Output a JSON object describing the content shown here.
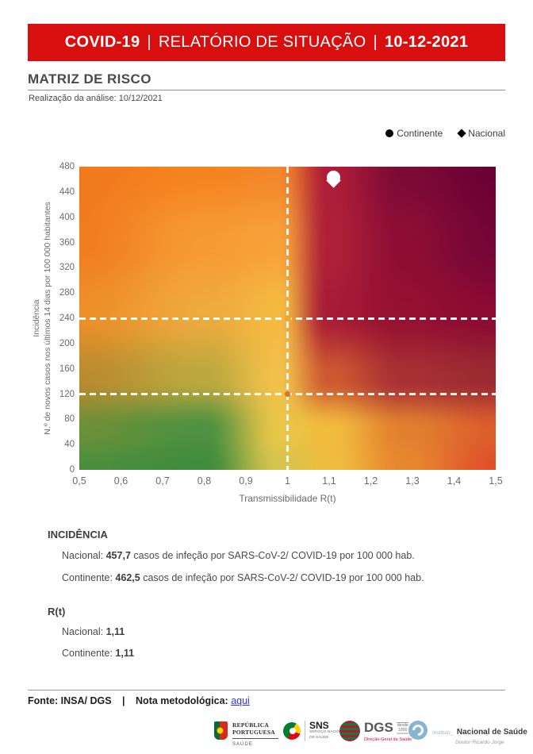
{
  "header": {
    "bg_color": "#D80F0E",
    "part1": "COVID-19",
    "sep1": "|",
    "part2": "RELATÓRIO DE SITUAÇÃO",
    "sep2": "|",
    "date": "10-12-2021"
  },
  "section": {
    "title": "MATRIZ DE RISCO",
    "subtitle": "Realização da análise: 10/12/2021"
  },
  "legend": {
    "items": [
      {
        "marker": "circle",
        "label": "Continente"
      },
      {
        "marker": "diamond",
        "label": "Nacional"
      }
    ]
  },
  "chart_data": {
    "type": "heatmap",
    "title": "Matriz de risco",
    "xlabel": "Transmissibilidade R(t)",
    "ylabel_line1": "Incidência",
    "ylabel_line2": "N.º de novos casos nos últimos 14 dias por 100 000 habitantes",
    "xlim": [
      0.5,
      1.5
    ],
    "ylim": [
      0,
      480
    ],
    "x_tick_values": [
      0.5,
      0.6,
      0.7,
      0.8,
      0.9,
      1,
      1.1,
      1.2,
      1.3,
      1.4,
      1.5
    ],
    "x_tick_labels": [
      "0,5",
      "0,6",
      "0,7",
      "0,8",
      "0,9",
      "1",
      "1,1",
      "1,2",
      "1,3",
      "1,4",
      "1,5"
    ],
    "y_ticks": [
      0,
      40,
      80,
      120,
      160,
      200,
      240,
      280,
      320,
      360,
      400,
      440,
      480
    ],
    "threshold_x": 1,
    "threshold_y": [
      120,
      240
    ],
    "line_color": "#FFFFFF",
    "points": [
      {
        "name": "Continente",
        "marker": "circle",
        "x": 1.11,
        "y": 462.5,
        "color": "#FFFFFF",
        "size": 17
      },
      {
        "name": "Nacional",
        "marker": "diamond",
        "x": 1.11,
        "y": 457.7,
        "color": "#FFFFFF",
        "size": 13
      }
    ],
    "intersection_dots": [
      {
        "x": 1,
        "y": 240,
        "color": "#F2A62A",
        "size": 8
      },
      {
        "x": 1,
        "y": 120,
        "color": "#E4711F",
        "size": 7
      }
    ],
    "heatmap_grid": {
      "u_stops": [
        0,
        0.3,
        0.48,
        0.6,
        0.78,
        1
      ],
      "v_stops": [
        0,
        0.13,
        0.3,
        0.52,
        0.75,
        1
      ],
      "colors": [
        [
          "#4A8F3E",
          "#3E8C3C",
          "#D5C44E",
          "#F0BE3E",
          "#E8872E",
          "#E1512A"
        ],
        [
          "#6B9038",
          "#4E9141",
          "#E8C647",
          "#F2BC3D",
          "#E2802F",
          "#DC5F2D"
        ],
        [
          "#B98B2F",
          "#BCA83E",
          "#F2C04A",
          "#CE5A31",
          "#A93134",
          "#9C2A32"
        ],
        [
          "#EE8F28",
          "#EFA93E",
          "#F5B93F",
          "#A81B36",
          "#951032",
          "#8C0A33"
        ],
        [
          "#F07D20",
          "#F79A33",
          "#F7A139",
          "#B02038",
          "#8E0D35",
          "#740635"
        ],
        [
          "#F07A1E",
          "#F5831D",
          "#F2862C",
          "#AE1C38",
          "#7D0A36",
          "#6A0133"
        ]
      ]
    }
  },
  "incidencia": {
    "heading": "INCIDÊNCIA",
    "rows": [
      {
        "label": "Nacional:",
        "value": "457,7",
        "suffix": "casos de infeção por SARS-CoV-2/ COVID-19 por 100 000 hab."
      },
      {
        "label": "Continente:",
        "value": "462,5",
        "suffix": "casos de infeção por SARS-CoV-2/ COVID-19 por 100 000 hab."
      }
    ]
  },
  "rt": {
    "heading": "R(t)",
    "rows": [
      {
        "label": "Nacional:",
        "value": "1,11"
      },
      {
        "label": "Continente:",
        "value": "1,11"
      }
    ]
  },
  "footer": {
    "fonte": "Fonte: INSA/ DGS",
    "sep": "|",
    "nota": "Nota metodológica:",
    "link": "aqui"
  },
  "logos": {
    "republica": {
      "line1": "REPÚBLICA",
      "line2": "PORTUGUESA",
      "sub": "SAÚDE"
    },
    "sns": {
      "abbr": "SNS",
      "sub1": "SERVIÇO NACIONAL",
      "sub2": "DE SAÚDE"
    },
    "dgs": {
      "abbr": "DGS",
      "sub": "Direção-Geral da Saúde",
      "since_top": "desde",
      "since_bottom": "1800"
    },
    "insa": {
      "prefix": "Instituto_",
      "name": "Nacional de Saúde",
      "sub": "Doutor Ricardo Jorge"
    }
  }
}
